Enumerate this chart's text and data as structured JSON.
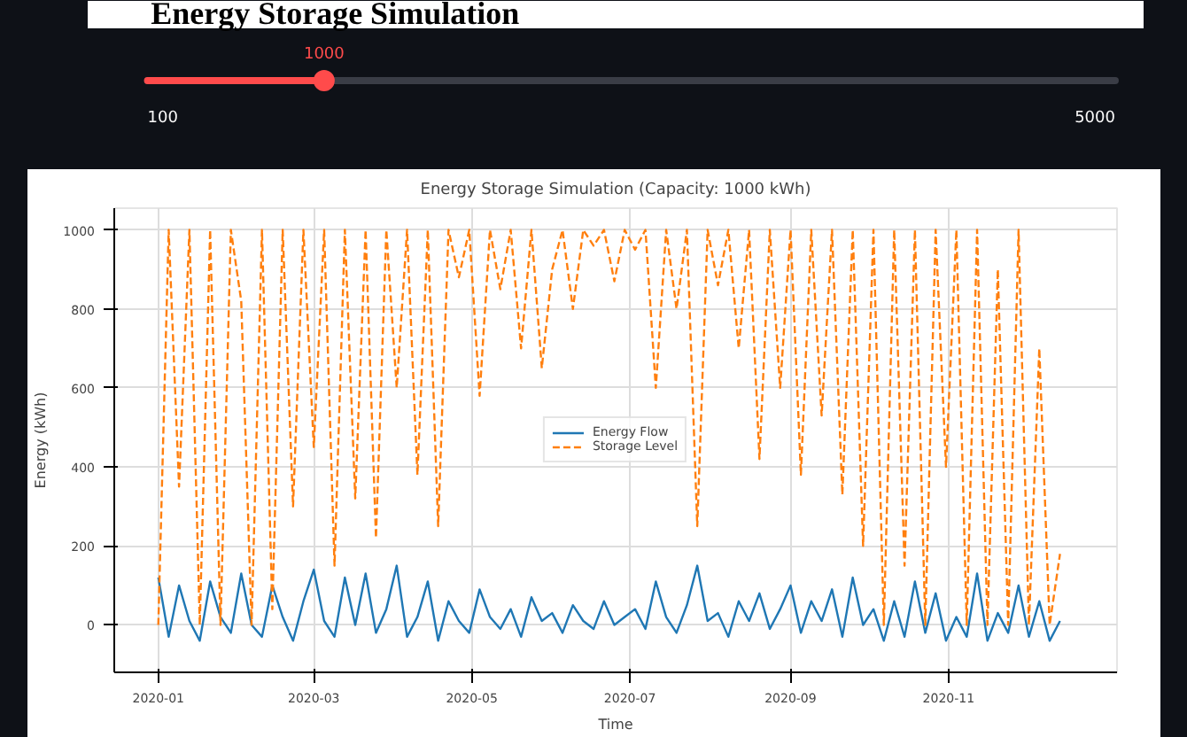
{
  "chart_data": {
    "type": "line",
    "title": "Energy Storage Simulation (Capacity: 1000 kWh)",
    "xlabel": "Time",
    "ylabel": "Energy (kWh)",
    "annotations": [
      "Energy Storage Simulation",
      "1000",
      "100",
      "5000"
    ],
    "x": [
      "2020-01-01",
      "2020-01-05",
      "2020-01-09",
      "2020-01-13",
      "2020-01-17",
      "2020-01-21",
      "2020-01-25",
      "2020-01-29",
      "2020-02-02",
      "2020-02-06",
      "2020-02-10",
      "2020-02-14",
      "2020-02-18",
      "2020-02-22",
      "2020-02-26",
      "2020-03-01",
      "2020-03-05",
      "2020-03-09",
      "2020-03-13",
      "2020-03-17",
      "2020-03-21",
      "2020-03-25",
      "2020-03-29",
      "2020-04-02",
      "2020-04-06",
      "2020-04-10",
      "2020-04-14",
      "2020-04-18",
      "2020-04-22",
      "2020-04-26",
      "2020-04-30",
      "2020-05-04",
      "2020-05-08",
      "2020-05-12",
      "2020-05-16",
      "2020-05-20",
      "2020-05-24",
      "2020-05-28",
      "2020-06-01",
      "2020-06-05",
      "2020-06-09",
      "2020-06-13",
      "2020-06-17",
      "2020-06-21",
      "2020-06-25",
      "2020-06-29",
      "2020-07-03",
      "2020-07-07",
      "2020-07-11",
      "2020-07-15",
      "2020-07-19",
      "2020-07-23",
      "2020-07-27",
      "2020-07-31",
      "2020-08-04",
      "2020-08-08",
      "2020-08-12",
      "2020-08-16",
      "2020-08-20",
      "2020-08-24",
      "2020-08-28",
      "2020-09-01",
      "2020-09-05",
      "2020-09-09",
      "2020-09-13",
      "2020-09-17",
      "2020-09-21",
      "2020-09-25",
      "2020-09-29",
      "2020-10-03",
      "2020-10-07",
      "2020-10-11",
      "2020-10-15",
      "2020-10-19",
      "2020-10-23",
      "2020-10-27",
      "2020-10-31",
      "2020-11-04",
      "2020-11-08",
      "2020-11-12",
      "2020-11-16",
      "2020-11-20",
      "2020-11-24",
      "2020-11-28",
      "2020-12-02",
      "2020-12-06",
      "2020-12-10",
      "2020-12-14"
    ],
    "series": [
      {
        "name": "Energy Flow",
        "color": "#1f77b4",
        "line_style": "solid",
        "values": [
          120,
          -30,
          100,
          10,
          -40,
          110,
          20,
          -20,
          130,
          0,
          -30,
          100,
          20,
          -40,
          60,
          140,
          10,
          -30,
          120,
          0,
          130,
          -20,
          40,
          150,
          -30,
          20,
          110,
          -40,
          60,
          10,
          -20,
          90,
          20,
          -10,
          40,
          -30,
          70,
          10,
          30,
          -20,
          50,
          10,
          -10,
          60,
          0,
          20,
          40,
          -10,
          110,
          20,
          -20,
          50,
          150,
          10,
          30,
          -30,
          60,
          10,
          80,
          -10,
          40,
          100,
          -20,
          60,
          10,
          90,
          -30,
          120,
          0,
          40,
          -40,
          60,
          -30,
          110,
          -20,
          80,
          -40,
          20,
          -30,
          130,
          -40,
          30,
          -20,
          100,
          -30,
          60,
          -40,
          10
        ]
      },
      {
        "name": "Storage Level",
        "color": "#ff7f0e",
        "line_style": "dashed",
        "values": [
          0,
          1000,
          350,
          1000,
          0,
          1000,
          0,
          1000,
          820,
          0,
          1000,
          40,
          1000,
          300,
          1000,
          450,
          1000,
          150,
          1000,
          320,
          1000,
          220,
          1000,
          600,
          1000,
          380,
          1000,
          250,
          1000,
          880,
          1000,
          580,
          1000,
          850,
          1000,
          700,
          1000,
          650,
          900,
          1000,
          800,
          1000,
          960,
          1000,
          870,
          1000,
          950,
          1000,
          600,
          1000,
          800,
          1000,
          250,
          1000,
          860,
          1000,
          700,
          1000,
          420,
          1000,
          600,
          1000,
          380,
          1000,
          530,
          1000,
          330,
          1000,
          200,
          1000,
          0,
          1000,
          150,
          1000,
          0,
          1000,
          400,
          1000,
          0,
          1000,
          0,
          900,
          0,
          1000,
          0,
          700,
          0,
          180
        ]
      }
    ],
    "xlim": [
      "2019-12-15",
      "2021-01-05"
    ],
    "xticks": [
      "2020-01",
      "2020-03",
      "2020-05",
      "2020-07",
      "2020-09",
      "2020-11"
    ],
    "ylim": [
      -120,
      1055
    ],
    "yticks": [
      0,
      200,
      400,
      600,
      800,
      1000
    ],
    "grid": true,
    "legend": "center",
    "marker": "none"
  }
}
